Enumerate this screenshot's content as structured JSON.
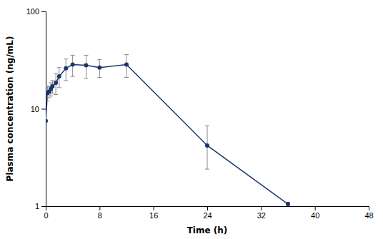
{
  "chart_data": {
    "type": "line",
    "x": [
      0,
      0.25,
      0.5,
      0.75,
      1.0,
      1.5,
      2.0,
      3.0,
      4.0,
      6.0,
      8.0,
      12.0,
      24.0,
      36.0
    ],
    "values": [
      7.5,
      14.5,
      15.0,
      16.0,
      17.0,
      18.5,
      21.5,
      26.0,
      28.5,
      28.0,
      26.5,
      28.5,
      4.2,
      1.05
    ],
    "yerr_low": [
      0,
      2.5,
      2.0,
      2.5,
      2.5,
      4.5,
      5.0,
      6.5,
      7.0,
      7.5,
      5.5,
      7.5,
      1.8,
      0.05
    ],
    "yerr_high": [
      0,
      2.5,
      2.0,
      2.5,
      2.5,
      4.5,
      5.0,
      6.5,
      7.0,
      7.5,
      5.5,
      7.5,
      2.5,
      0.05
    ],
    "color": "#1a3570",
    "marker": "circle",
    "xlabel": "Time (h)",
    "ylabel": "Plasma concentration (ng/mL)",
    "xlim": [
      0,
      48
    ],
    "ylim": [
      1,
      100
    ],
    "xticks": [
      0,
      8,
      16,
      24,
      32,
      40,
      48
    ],
    "yticks": [
      1,
      10,
      100
    ],
    "log": "y",
    "grid": false
  }
}
